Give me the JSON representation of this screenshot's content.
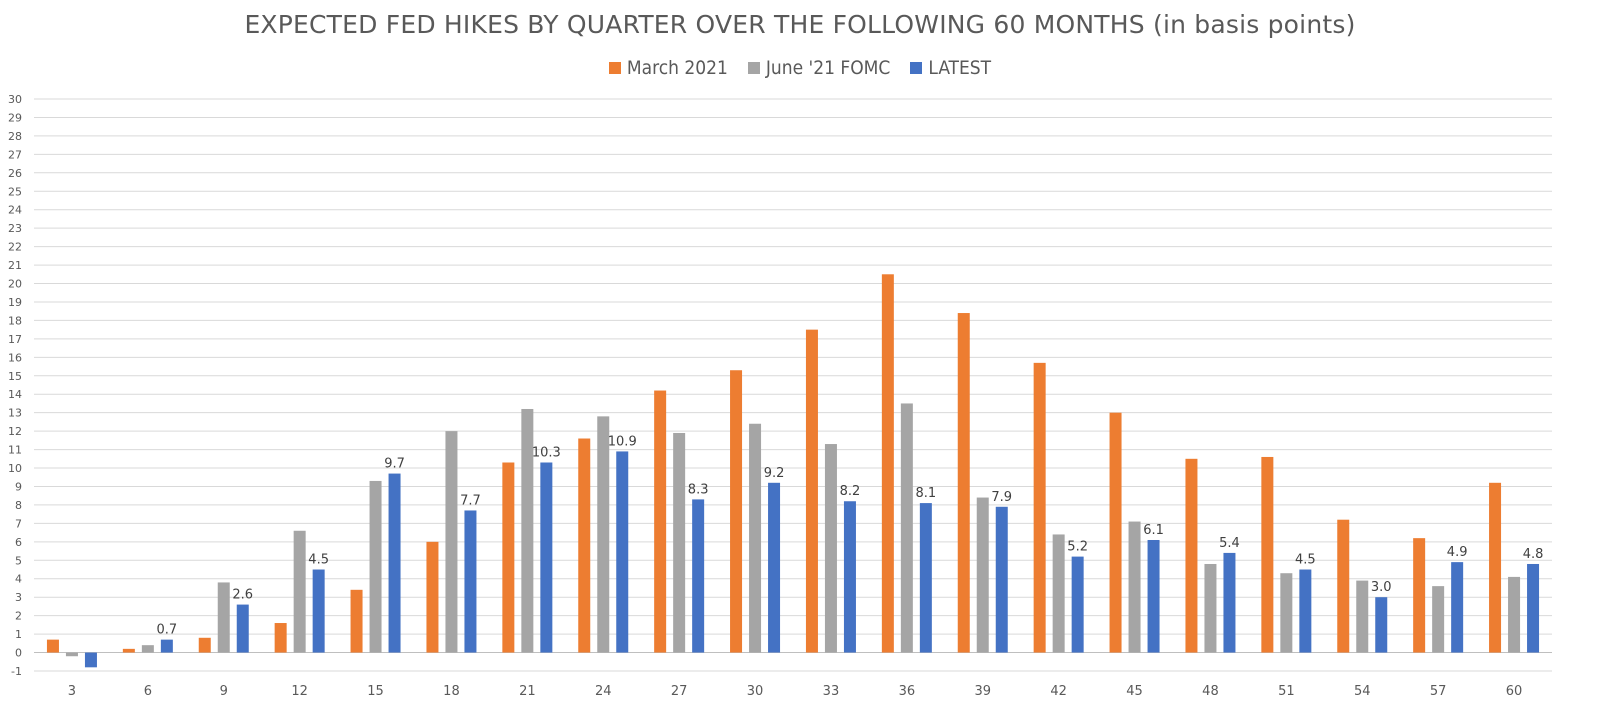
{
  "chart_data": {
    "type": "bar",
    "title": "EXPECTED FED HIKES BY QUARTER OVER THE FOLLOWING 60 MONTHS (in basis points)",
    "xlabel": "",
    "ylabel": "",
    "ylim": [
      -1,
      30
    ],
    "yticks": [
      -1,
      0,
      1,
      2,
      3,
      4,
      5,
      6,
      7,
      8,
      9,
      10,
      11,
      12,
      13,
      14,
      15,
      16,
      17,
      18,
      19,
      20,
      21,
      22,
      23,
      24,
      25,
      26,
      27,
      28,
      29,
      30
    ],
    "grid": true,
    "legend_position": "top-center",
    "categories": [
      "3",
      "6",
      "9",
      "12",
      "15",
      "18",
      "21",
      "24",
      "27",
      "30",
      "33",
      "36",
      "39",
      "42",
      "45",
      "48",
      "51",
      "54",
      "57",
      "60"
    ],
    "series": [
      {
        "name": "March 2021",
        "color": "#ED7D31",
        "values": [
          0.7,
          0.2,
          0.8,
          1.6,
          3.4,
          6.0,
          10.3,
          11.6,
          14.2,
          15.3,
          17.5,
          20.5,
          18.4,
          15.7,
          13.0,
          10.5,
          10.6,
          7.2,
          6.2,
          9.2
        ]
      },
      {
        "name": "June '21 FOMC",
        "color": "#A5A5A5",
        "values": [
          -0.2,
          0.4,
          3.8,
          6.6,
          9.3,
          12.0,
          13.2,
          12.8,
          11.9,
          12.4,
          11.3,
          13.5,
          8.4,
          6.4,
          7.1,
          4.8,
          4.3,
          3.9,
          3.6,
          4.1
        ]
      },
      {
        "name": "LATEST",
        "color": "#4472C4",
        "values": [
          -0.8,
          0.7,
          2.6,
          4.5,
          9.7,
          7.7,
          10.3,
          10.9,
          8.3,
          9.2,
          8.2,
          8.1,
          7.9,
          5.2,
          6.1,
          5.4,
          4.5,
          3.0,
          4.9,
          4.8
        ],
        "data_labels": [
          null,
          "0.7",
          "2.6",
          "4.5",
          "9.7",
          "7.7",
          "10.3",
          "10.9",
          "8.3",
          "9.2",
          "8.2",
          "8.1",
          "7.9",
          "5.2",
          "6.1",
          "5.4",
          "4.5",
          "3.0",
          "4.9",
          "4.8"
        ]
      }
    ]
  }
}
